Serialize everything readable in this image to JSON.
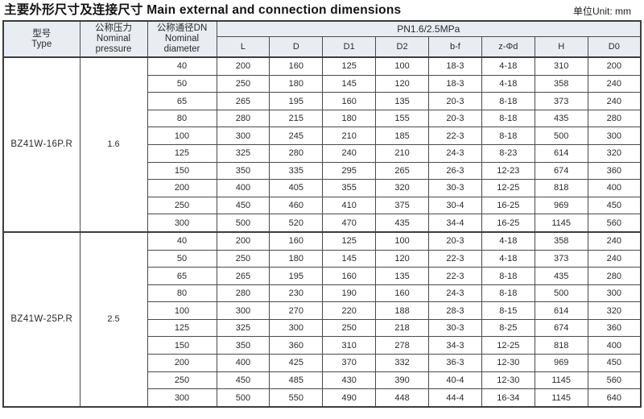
{
  "page": {
    "title": "主要外形尺寸及连接尺寸 Main external and connection dimensions",
    "unit_label": "单位Unit: mm"
  },
  "colors": {
    "header_bg": "#e9edf2",
    "border_dark": "#3d3d3d",
    "text": "#222222"
  },
  "table": {
    "headers": {
      "type": "型号\nType",
      "pressure": "公称压力\nNominal\npressure",
      "diameter": "公称通径DN\nNominal\ndiameter",
      "pn_group": "PN1.6/2.5MPa",
      "dim_columns": [
        "L",
        "D",
        "D1",
        "D2",
        "b-f",
        "z-Φd",
        "H",
        "D0"
      ]
    },
    "sections": [
      {
        "type": "BZ41W-16P.R",
        "pressure": "1.6",
        "rows": [
          [
            "40",
            "200",
            "160",
            "125",
            "100",
            "18-3",
            "4-18",
            "310",
            "200"
          ],
          [
            "50",
            "250",
            "180",
            "145",
            "120",
            "18-3",
            "4-18",
            "358",
            "240"
          ],
          [
            "65",
            "265",
            "195",
            "160",
            "135",
            "20-3",
            "8-18",
            "373",
            "240"
          ],
          [
            "80",
            "280",
            "215",
            "180",
            "155",
            "20-3",
            "8-18",
            "435",
            "280"
          ],
          [
            "100",
            "300",
            "245",
            "210",
            "185",
            "22-3",
            "8-18",
            "500",
            "300"
          ],
          [
            "125",
            "325",
            "280",
            "240",
            "210",
            "24-3",
            "8-23",
            "614",
            "320"
          ],
          [
            "150",
            "350",
            "335",
            "295",
            "265",
            "26-3",
            "12-23",
            "674",
            "360"
          ],
          [
            "200",
            "400",
            "405",
            "355",
            "320",
            "30-3",
            "12-25",
            "818",
            "400"
          ],
          [
            "250",
            "450",
            "460",
            "410",
            "375",
            "30-4",
            "16-25",
            "969",
            "450"
          ],
          [
            "300",
            "500",
            "520",
            "470",
            "435",
            "34-4",
            "16-25",
            "1145",
            "560"
          ]
        ]
      },
      {
        "type": "BZ41W-25P.R",
        "pressure": "2.5",
        "rows": [
          [
            "40",
            "200",
            "160",
            "125",
            "100",
            "20-3",
            "4-18",
            "358",
            "240"
          ],
          [
            "50",
            "250",
            "180",
            "145",
            "120",
            "22-3",
            "4-18",
            "373",
            "240"
          ],
          [
            "65",
            "265",
            "195",
            "160",
            "135",
            "22-3",
            "8-18",
            "435",
            "280"
          ],
          [
            "80",
            "280",
            "230",
            "190",
            "160",
            "24-3",
            "8-18",
            "500",
            "300"
          ],
          [
            "100",
            "300",
            "270",
            "220",
            "188",
            "28-3",
            "8-15",
            "614",
            "320"
          ],
          [
            "125",
            "325",
            "300",
            "250",
            "218",
            "30-3",
            "8-25",
            "674",
            "360"
          ],
          [
            "150",
            "350",
            "360",
            "310",
            "278",
            "34-3",
            "12-25",
            "818",
            "400"
          ],
          [
            "200",
            "400",
            "425",
            "370",
            "332",
            "36-3",
            "12-30",
            "969",
            "450"
          ],
          [
            "250",
            "450",
            "485",
            "430",
            "390",
            "40-4",
            "12-30",
            "1145",
            "560"
          ],
          [
            "300",
            "500",
            "550",
            "490",
            "448",
            "44-4",
            "16-34",
            "1145",
            "640"
          ]
        ]
      }
    ]
  }
}
